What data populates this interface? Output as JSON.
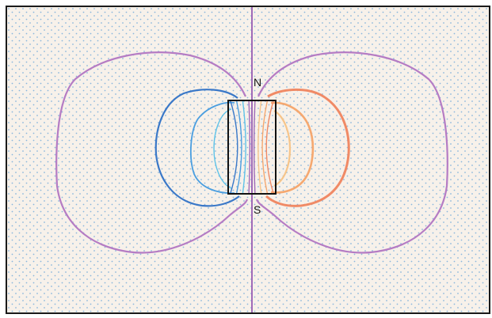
{
  "labels": {
    "north": "N",
    "south": "S"
  },
  "colors": {
    "background": "#f7f1ea",
    "dots": "#8ab7dc",
    "frame": "#1a1a1a",
    "magnet_outline": "#111111",
    "outer_contour": "#b57cc4",
    "blue_outer": "#3a78c8",
    "blue_mid": "#4a9ee0",
    "blue_inner": "#5fc3e8",
    "orange_outer": "#f08a66",
    "orange_mid": "#f5a870",
    "orange_inner": "#f7c58a",
    "center_line": "#a06ab8"
  }
}
